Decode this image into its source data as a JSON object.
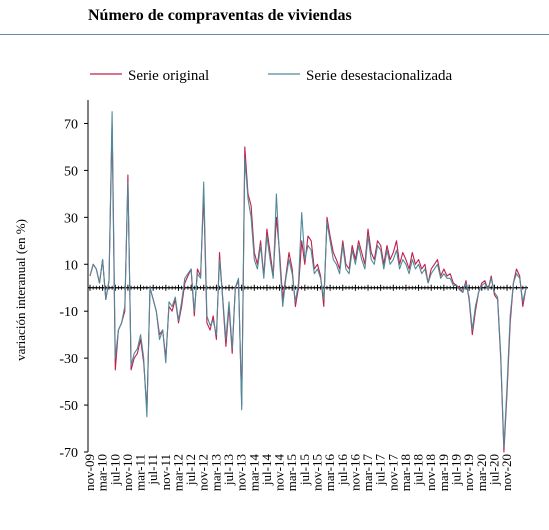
{
  "title": "Número de compraventas de viviendas",
  "chart_data": {
    "type": "line",
    "title": "Número de compraventas de viviendas",
    "xlabel": "",
    "ylabel": "variación interanual (en %)",
    "ylim": [
      -70,
      80
    ],
    "yticks": [
      -70,
      -50,
      -30,
      -10,
      10,
      30,
      50,
      70
    ],
    "grid": false,
    "legend_position": "top",
    "x_tick_labels": [
      "nov-09",
      "mar-10",
      "jul-10",
      "nov-10",
      "mar-11",
      "jul-11",
      "nov-11",
      "mar-12",
      "jul-12",
      "nov-12",
      "mar-13",
      "jul-13",
      "nov-13",
      "mar-14",
      "jul-14",
      "nov-14",
      "mar-15",
      "jul-15",
      "nov-15",
      "mar-16",
      "jul-16",
      "nov-16",
      "mar-17",
      "jul-17",
      "nov-17",
      "mar-18",
      "jul-18",
      "nov-18",
      "mar-19",
      "jul-19",
      "nov-19",
      "mar-20",
      "jul-20",
      "nov-20"
    ],
    "series": [
      {
        "name": "Serie original",
        "color": "#c0204a",
        "values": [
          5,
          10,
          8,
          2,
          12,
          -5,
          3,
          70,
          -35,
          -18,
          -15,
          -10,
          48,
          -35,
          -30,
          -28,
          -22,
          -32,
          -52,
          0,
          -5,
          -10,
          -20,
          -18,
          -30,
          -8,
          -10,
          -5,
          -15,
          -8,
          2,
          5,
          8,
          -12,
          8,
          5,
          40,
          -15,
          -18,
          -12,
          -22,
          15,
          -5,
          -25,
          -8,
          -28,
          0,
          3,
          -50,
          60,
          40,
          35,
          15,
          10,
          20,
          5,
          25,
          15,
          5,
          30,
          15,
          -5,
          5,
          15,
          8,
          -8,
          0,
          20,
          10,
          22,
          20,
          8,
          10,
          5,
          -8,
          30,
          22,
          15,
          12,
          8,
          20,
          10,
          8,
          18,
          12,
          20,
          15,
          10,
          25,
          15,
          12,
          20,
          18,
          10,
          18,
          12,
          15,
          20,
          10,
          15,
          12,
          8,
          15,
          10,
          12,
          8,
          10,
          2,
          8,
          10,
          12,
          5,
          8,
          5,
          6,
          2,
          1,
          0,
          -2,
          3,
          -5,
          -20,
          -10,
          -2,
          2,
          3,
          -1,
          5,
          -3,
          -5,
          -30,
          -70,
          -45,
          -15,
          2,
          8,
          5,
          -8,
          0
        ],
        "last_value": 0
      },
      {
        "name": "Serie desestacionalizada",
        "color": "#4f8a9a",
        "values": [
          5,
          10,
          8,
          2,
          12,
          -5,
          3,
          75,
          -30,
          -18,
          -15,
          -8,
          45,
          -33,
          -28,
          -26,
          -20,
          -30,
          -55,
          0,
          -5,
          -10,
          -22,
          -18,
          -32,
          -6,
          -8,
          -4,
          -14,
          -6,
          4,
          6,
          8,
          -10,
          6,
          4,
          45,
          -12,
          -16,
          -14,
          -20,
          12,
          -4,
          -22,
          -6,
          -26,
          0,
          4,
          -52,
          55,
          38,
          30,
          12,
          8,
          18,
          4,
          22,
          12,
          4,
          40,
          12,
          -8,
          4,
          12,
          6,
          -6,
          2,
          32,
          12,
          18,
          16,
          6,
          8,
          4,
          -5,
          28,
          20,
          12,
          10,
          6,
          18,
          8,
          6,
          16,
          10,
          18,
          12,
          8,
          22,
          12,
          10,
          18,
          16,
          8,
          16,
          10,
          12,
          16,
          8,
          12,
          10,
          6,
          12,
          8,
          10,
          6,
          8,
          2,
          6,
          8,
          10,
          4,
          6,
          4,
          4,
          1,
          1,
          -1,
          -2,
          2,
          -4,
          -18,
          -8,
          -2,
          1,
          2,
          -1,
          4,
          -2,
          -4,
          -28,
          -68,
          -42,
          -12,
          2,
          6,
          4,
          -6,
          0
        ],
        "last_value": 0
      }
    ]
  }
}
